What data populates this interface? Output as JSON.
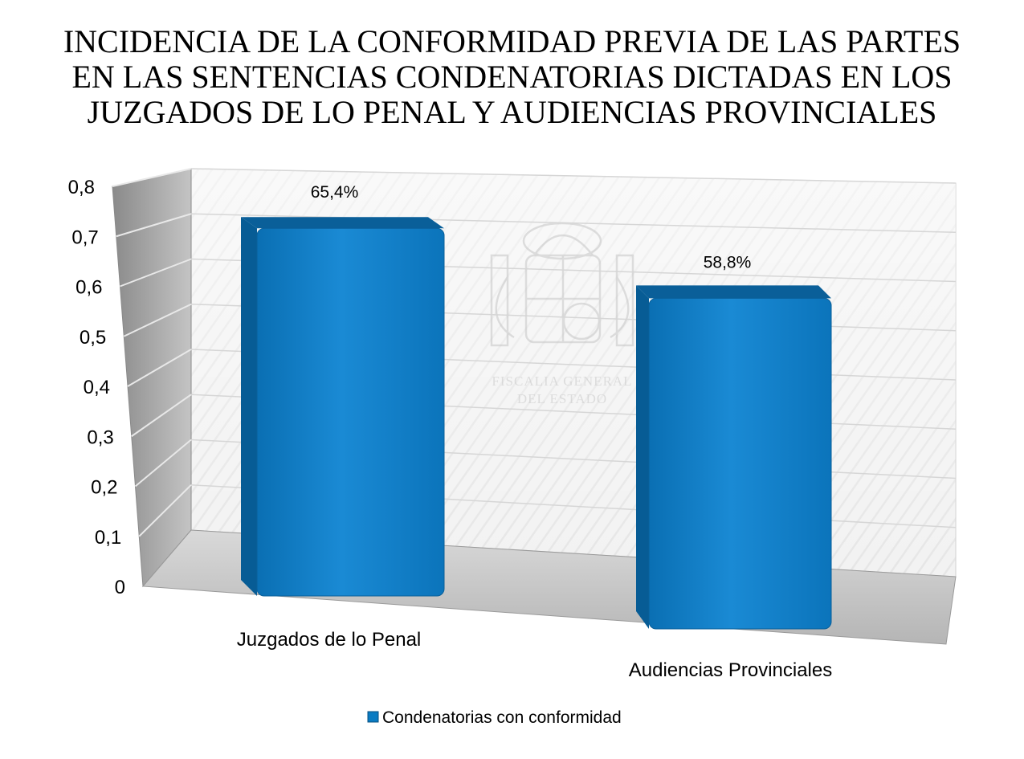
{
  "chart_data": {
    "type": "bar",
    "title_lines": [
      "INCIDENCIA DE LA CONFORMIDAD PREVIA DE LAS PARTES",
      "EN LAS SENTENCIAS CONDENATORIAS DICTADAS EN LOS",
      "JUZGADOS DE LO PENAL Y AUDIENCIAS PROVINCIALES"
    ],
    "categories": [
      "Juzgados de lo Penal",
      "Audiencias Provinciales"
    ],
    "series": [
      {
        "name": "Condenatorias con conformidad",
        "values": [
          0.654,
          0.588
        ],
        "data_labels": [
          "65,4%",
          "58,8%"
        ]
      }
    ],
    "y_ticks": [
      "0",
      "0,1",
      "0,2",
      "0,3",
      "0,4",
      "0,5",
      "0,6",
      "0,7",
      "0,8"
    ],
    "ylim": [
      0,
      0.8
    ],
    "grid": true,
    "legend_position": "bottom",
    "bar_color": "#0a7bc2",
    "watermark_lines": [
      "FISCALIA GENERAL",
      "DEL ESTADO"
    ]
  }
}
